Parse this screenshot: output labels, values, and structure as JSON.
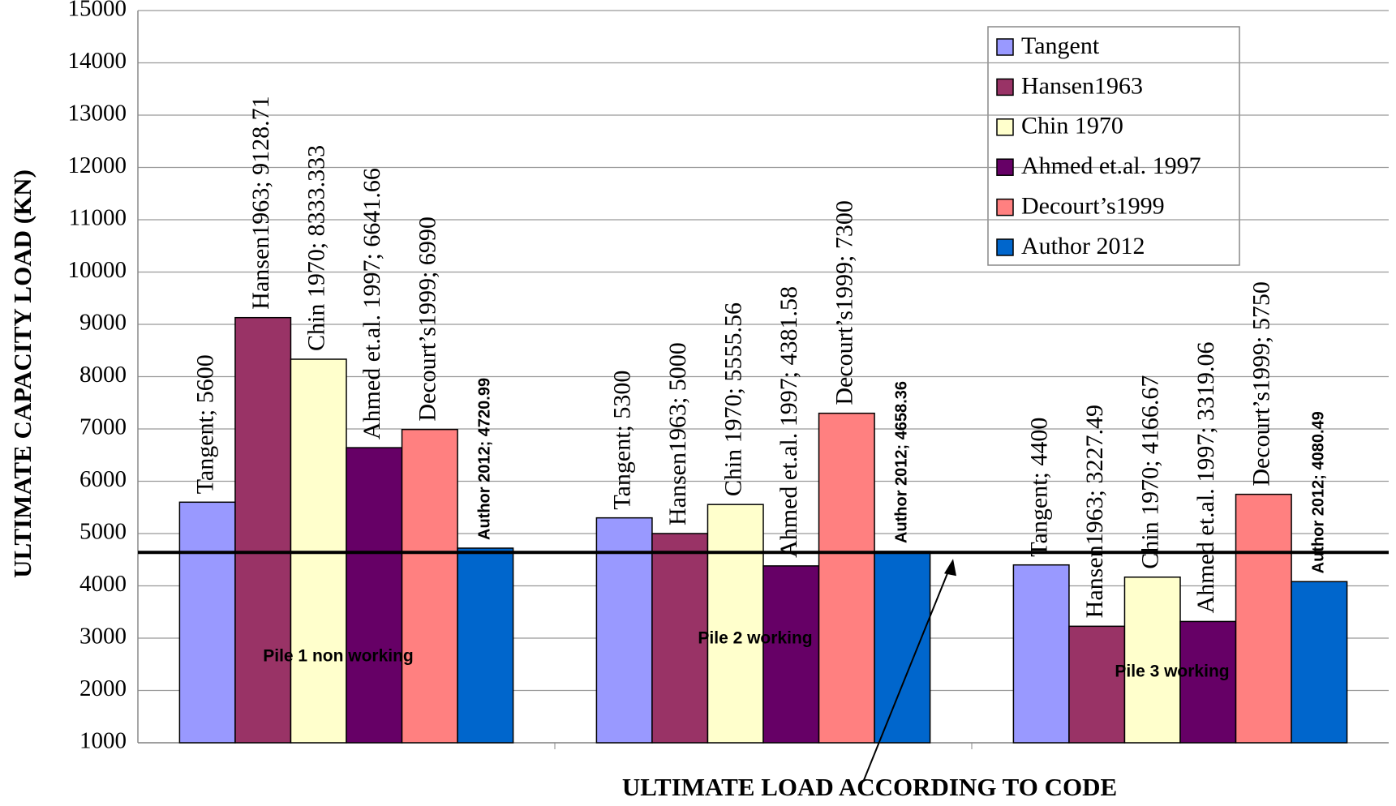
{
  "chart_data": {
    "type": "bar",
    "y_label": "ULTIMATE CAPACITY LOAD (KN)",
    "categories": [
      "Pile 1 non working",
      "Pile 2 working",
      "Pile 3 working"
    ],
    "series": [
      {
        "name": "Tangent",
        "color": "#9999ff",
        "values": [
          5600,
          5300,
          4400
        ],
        "value_labels": [
          "Tangent; 5600",
          "Tangent; 5300",
          "Tangent; 4400"
        ]
      },
      {
        "name": "Hansen1963",
        "color": "#993366",
        "values": [
          9128.71,
          5000,
          3227.49
        ],
        "value_labels": [
          "Hansen1963; 9128.71",
          "Hansen1963; 5000",
          "Hansen1963; 3227.49"
        ]
      },
      {
        "name": "Chin 1970",
        "color": "#ffffcc",
        "values": [
          8333.333,
          5555.56,
          4166.67
        ],
        "value_labels": [
          "Chin 1970; 8333.333",
          "Chin 1970; 5555.56",
          "Chin 1970; 4166.67"
        ]
      },
      {
        "name": "Ahmed et.al. 1997",
        "color": "#660066",
        "values": [
          6641.66,
          4381.58,
          3319.06
        ],
        "value_labels": [
          "Ahmed et.al. 1997; 6641.66",
          "Ahmed et.al. 1997; 4381.58",
          "Ahmed et.al. 1997; 3319.06"
        ]
      },
      {
        "name": "Decourt’s1999",
        "color": "#ff8080",
        "values": [
          6990,
          7300,
          5750
        ],
        "value_labels": [
          "Decourt’s1999; 6990",
          "Decourt’s1999; 7300",
          "Decourt’s1999; 5750"
        ]
      },
      {
        "name": "Author 2012",
        "color": "#0066cc",
        "values": [
          4720.99,
          4658.36,
          4080.49
        ],
        "value_labels": [
          "Author 2012; 4720.99",
          "Author 2012; 4658.36",
          "Author 2012; 4080.49"
        ],
        "bold_labels": true
      }
    ],
    "ylim": [
      1000,
      15000
    ],
    "yticks": [
      1000,
      2000,
      3000,
      4000,
      5000,
      6000,
      7000,
      8000,
      9000,
      10000,
      11000,
      12000,
      13000,
      14000,
      15000
    ],
    "grid": true,
    "legend_position": "upper right",
    "reference_line": {
      "value": 4640,
      "label": "ULTIMATE LOAD ACCORDING TO CODE",
      "color": "#000000"
    }
  }
}
